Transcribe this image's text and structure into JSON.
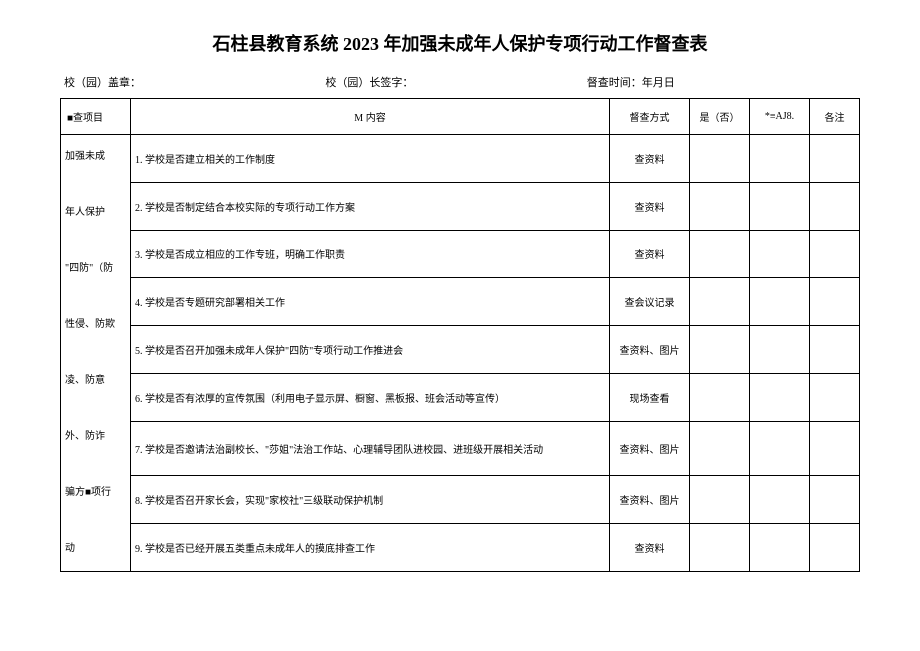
{
  "title": "石柱县教育系统 2023 年加强未成年人保护专项行动工作督查表",
  "header": {
    "seal": "校（园）盖章：",
    "sign": "校（园）长签字：",
    "time": "督查时间：年月日"
  },
  "columns": {
    "project": "■查项目",
    "content": "M 内容",
    "method": "督查方式",
    "yesno": "是（否）",
    "aj8": "*≡AJ8.",
    "note": "各注"
  },
  "projectLabel": "加强未成\n\n年人保护\n\n\"四防\"（防\n\n性侵、防欺\n\n凌、防意\n\n外、防诈\n\n骗方■项行\n\n动",
  "rows": [
    {
      "content": "1. 学校是否建立相关的工作制度",
      "method": "查资料"
    },
    {
      "content": "2. 学校是否制定结合本校实际的专项行动工作方案",
      "method": "查资料"
    },
    {
      "content": "3. 学校是否成立相应的工作专班，明确工作职责",
      "method": "查资料"
    },
    {
      "content": "4. 学校是否专题研究部署相关工作",
      "method": "查会议记录"
    },
    {
      "content": "5. 学校是否召开加强未成年人保护\"四防\"专项行动工作推进会",
      "method": "查资料、图片"
    },
    {
      "content": "6. 学校是否有浓厚的宣传氛围（利用电子显示屏、橱窗、黑板报、班会活动等宣传）",
      "method": "现场查看"
    },
    {
      "content": "7. 学校是否邀请法治副校长、\"莎姐\"法治工作站、心理辅导团队进校园、进班级开展相关活动",
      "method": "查资料、图片"
    },
    {
      "content": "8. 学校是否召开家长会，实现\"家校社\"三级联动保护机制",
      "method": "查资料、图片"
    },
    {
      "content": "9. 学校是否已经开展五类重点未成年人的摸底排查工作",
      "method": "查资料"
    }
  ],
  "colors": {
    "background": "#ffffff",
    "border": "#000000",
    "text": "#000000"
  }
}
